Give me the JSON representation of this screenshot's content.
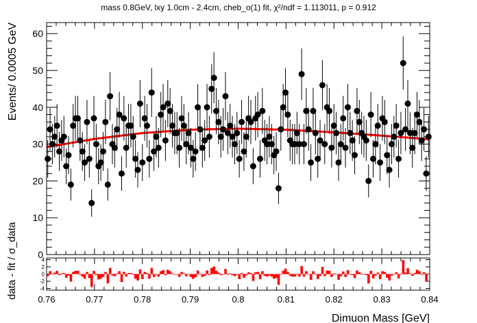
{
  "chart_data": [
    {
      "type": "scatter",
      "title": "mass 0.8GeV, lxy 1.0cm - 2.4cm, cheb_o(1) fit, χ²/ndf = 1.113011, p = 0.912",
      "xlabel": "Dimuon Mass [GeV]",
      "ylabel": "Events/ 0.0005 GeV",
      "xlim": [
        0.76,
        0.84
      ],
      "ylim": [
        0,
        63
      ],
      "x_ticks": [
        "0.76",
        "0.77",
        "0.78",
        "0.79",
        "0.8",
        "0.81",
        "0.82",
        "0.83",
        "0.84"
      ],
      "y_ticks": [
        "0",
        "10",
        "20",
        "30",
        "40",
        "50",
        "60"
      ],
      "grid": false,
      "data_color": "#000000",
      "fit_color": "#ff0000",
      "bin_width": 0.0005,
      "x_start": 0.76,
      "values": [
        26,
        34,
        30,
        32,
        35,
        28,
        31,
        32,
        24,
        27,
        19,
        35,
        37,
        37,
        31,
        28,
        25,
        36,
        26,
        14,
        37,
        30,
        24,
        25,
        28,
        36,
        19,
        43,
        30,
        29,
        34,
        38,
        22,
        37,
        29,
        35,
        35,
        32,
        26,
        23,
        41,
        25,
        37,
        35,
        26,
        44,
        28,
        32,
        29,
        38,
        40,
        31,
        41,
        39,
        35,
        33,
        33,
        29,
        37,
        35,
        30,
        33,
        29,
        26,
        28,
        40,
        34,
        29,
        31,
        40,
        32,
        45,
        48,
        39,
        36,
        32,
        34,
        43,
        33,
        35,
        32,
        30,
        33,
        26,
        36,
        28,
        32,
        37,
        36,
        24,
        37,
        38,
        26,
        39,
        31,
        30,
        32,
        30,
        27,
        28,
        18,
        34,
        40,
        44,
        38,
        31,
        30,
        30,
        33,
        30,
        49,
        30,
        39,
        34,
        25,
        39,
        33,
        26,
        31,
        46,
        30,
        40,
        39,
        29,
        35,
        33,
        25,
        30,
        37,
        29,
        40,
        33,
        31,
        27,
        39,
        36,
        33,
        32,
        31,
        20,
        38,
        26,
        30,
        35,
        25,
        37,
        36,
        27,
        23,
        30,
        32,
        35,
        26,
        33,
        52,
        34,
        41,
        33,
        29,
        33,
        38,
        36,
        31,
        34,
        22,
        32
      ],
      "fit": {
        "x": [
          0.76,
          0.77,
          0.78,
          0.79,
          0.8,
          0.81,
          0.82,
          0.83,
          0.84
        ],
        "y": [
          29.2,
          31.4,
          33.0,
          33.9,
          34.2,
          33.9,
          33.2,
          32.3,
          31.3
        ]
      }
    },
    {
      "type": "bar",
      "ylabel": "data - fit / σ_data",
      "xlim": [
        0.76,
        0.84
      ],
      "ylim": [
        -4,
        4
      ],
      "y_ticks": [
        "-4",
        "-2",
        "0",
        "2",
        "4"
      ],
      "bar_color": "#ff0000",
      "pulls": [
        -0.6,
        0.8,
        0.1,
        0.4,
        0.9,
        -0.3,
        0.2,
        0.3,
        -1.0,
        -0.4,
        -2.1,
        0.6,
        0.9,
        0.9,
        -0.2,
        -0.7,
        -1.3,
        0.6,
        -1.1,
        -3.6,
        0.9,
        -0.3,
        -1.5,
        -1.3,
        -0.8,
        0.6,
        -2.6,
        1.7,
        -0.4,
        -0.6,
        0.2,
        0.8,
        -2.2,
        0.6,
        -0.7,
        0.3,
        0.3,
        -0.2,
        -1.3,
        -1.8,
        1.3,
        -1.4,
        0.6,
        0.3,
        -1.3,
        1.7,
        -0.8,
        -0.1,
        -0.7,
        0.8,
        1.1,
        -0.3,
        1.2,
        0.8,
        0.2,
        -0.1,
        -0.1,
        -0.8,
        0.6,
        0.2,
        -0.6,
        -0.1,
        -0.8,
        -1.3,
        -0.9,
        1.0,
        0.0,
        -0.8,
        -0.5,
        1.0,
        -0.3,
        1.7,
        2.1,
        0.9,
        0.4,
        -0.3,
        0.0,
        1.4,
        -0.2,
        0.2,
        -0.3,
        -0.6,
        -0.2,
        -1.4,
        0.3,
        -1.0,
        -0.4,
        0.5,
        0.3,
        -1.9,
        0.5,
        0.6,
        -1.4,
        0.8,
        -0.5,
        -0.7,
        -0.4,
        -0.7,
        -1.3,
        -1.1,
        -3.0,
        0.0,
        0.9,
        1.5,
        0.6,
        -0.5,
        -0.7,
        -0.7,
        -0.2,
        -0.7,
        2.2,
        -0.7,
        0.8,
        0.0,
        -1.6,
        0.8,
        -0.1,
        -1.4,
        -0.5,
        2.0,
        -0.6,
        1.0,
        0.9,
        -0.8,
        0.2,
        -0.1,
        -1.6,
        -0.6,
        0.7,
        -0.8,
        1.1,
        0.0,
        -0.3,
        -1.1,
        1.0,
        0.5,
        0.0,
        -0.1,
        -0.3,
        -2.6,
        0.9,
        -1.2,
        -0.4,
        0.4,
        -1.4,
        0.8,
        0.6,
        -1.0,
        -1.8,
        -0.4,
        -0.1,
        0.5,
        -1.2,
        0.1,
        3.9,
        0.4,
        1.6,
        0.2,
        -0.5,
        0.3,
        1.2,
        0.8,
        -0.2,
        0.5,
        -2.0,
        0.1
      ]
    }
  ]
}
